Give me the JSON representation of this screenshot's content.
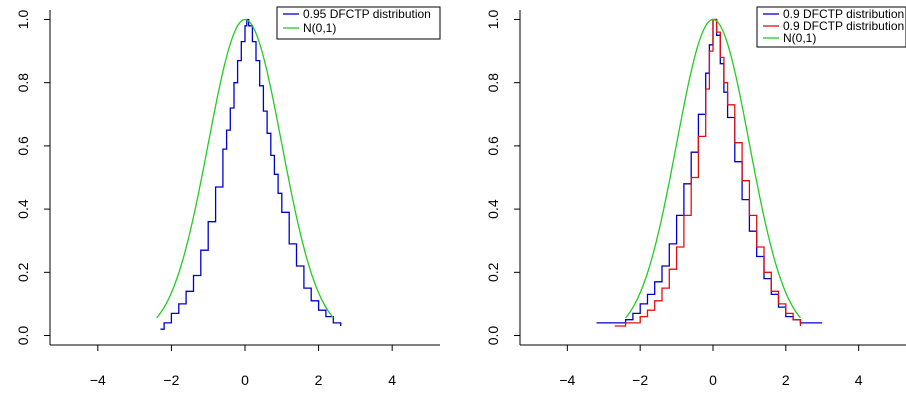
{
  "chart_data": [
    {
      "type": "line",
      "title": "",
      "xlabel": "",
      "ylabel": "",
      "xlim": [
        -5.3,
        5.3
      ],
      "ylim": [
        -0.03,
        1.03
      ],
      "xticks": [
        -4,
        -2,
        0,
        2,
        4
      ],
      "xtick_labels": [
        "−4",
        "−2",
        "0",
        "2",
        "4"
      ],
      "yticks": [
        0.0,
        0.2,
        0.4,
        0.6,
        0.8,
        1.0
      ],
      "ytick_labels": [
        "0.0",
        "0.2",
        "0.4",
        "0.6",
        "0.8",
        "1.0"
      ],
      "grid": false,
      "legend_position": "top-right",
      "colors": {
        "blue": "#0000cc",
        "red": "#e01010",
        "green": "#22cc22",
        "axis": "#000000"
      },
      "series": [
        {
          "name": "0.95 DFCTP distribution",
          "color": "#0000cc",
          "style": "step",
          "x": [
            -2.3,
            -2.2,
            -2.0,
            -1.8,
            -1.6,
            -1.4,
            -1.2,
            -1.0,
            -0.8,
            -0.6,
            -0.5,
            -0.4,
            -0.3,
            -0.2,
            -0.1,
            0.0,
            0.05,
            0.1,
            0.2,
            0.3,
            0.4,
            0.5,
            0.6,
            0.7,
            0.8,
            0.9,
            1.0,
            1.2,
            1.4,
            1.6,
            1.8,
            2.0,
            2.2,
            2.4,
            2.6
          ],
          "y": [
            0.02,
            0.04,
            0.07,
            0.1,
            0.14,
            0.19,
            0.27,
            0.36,
            0.47,
            0.59,
            0.65,
            0.72,
            0.8,
            0.87,
            0.93,
            0.98,
            1.0,
            0.98,
            0.93,
            0.87,
            0.79,
            0.71,
            0.64,
            0.57,
            0.51,
            0.45,
            0.39,
            0.29,
            0.22,
            0.15,
            0.11,
            0.08,
            0.06,
            0.04,
            0.03
          ]
        },
        {
          "name": "N(0,1)",
          "color": "#22cc22",
          "style": "smooth",
          "func": "gauss_peak1",
          "xrange": [
            -2.4,
            2.4
          ]
        }
      ]
    },
    {
      "type": "line",
      "title": "",
      "xlabel": "",
      "ylabel": "",
      "xlim": [
        -5.3,
        5.3
      ],
      "ylim": [
        -0.03,
        1.03
      ],
      "xticks": [
        -4,
        -2,
        0,
        2,
        4
      ],
      "xtick_labels": [
        "−4",
        "−2",
        "0",
        "2",
        "4"
      ],
      "yticks": [
        0.0,
        0.2,
        0.4,
        0.6,
        0.8,
        1.0
      ],
      "ytick_labels": [
        "0.0",
        "0.2",
        "0.4",
        "0.6",
        "0.8",
        "1.0"
      ],
      "grid": false,
      "legend_position": "top-right",
      "series": [
        {
          "name": "0.9 DFCTP distribution",
          "color": "#0000cc",
          "style": "step",
          "x": [
            -3.2,
            -2.4,
            -2.2,
            -2.0,
            -1.8,
            -1.6,
            -1.4,
            -1.2,
            -1.0,
            -0.8,
            -0.6,
            -0.4,
            -0.2,
            -0.1,
            0.0,
            0.1,
            0.2,
            0.3,
            0.4,
            0.6,
            0.8,
            1.0,
            1.2,
            1.4,
            1.6,
            1.8,
            2.0,
            2.2,
            2.4,
            3.0
          ],
          "y": [
            0.04,
            0.05,
            0.07,
            0.1,
            0.13,
            0.17,
            0.22,
            0.29,
            0.38,
            0.48,
            0.58,
            0.7,
            0.83,
            0.92,
            1.0,
            0.95,
            0.86,
            0.77,
            0.69,
            0.55,
            0.43,
            0.33,
            0.25,
            0.18,
            0.13,
            0.09,
            0.06,
            0.05,
            0.04,
            0.04
          ]
        },
        {
          "name": "0.9 DFCTP distribution",
          "color": "#e01010",
          "style": "step",
          "x": [
            -2.7,
            -2.4,
            -2.0,
            -1.8,
            -1.6,
            -1.4,
            -1.2,
            -1.0,
            -0.8,
            -0.6,
            -0.4,
            -0.2,
            -0.1,
            0.0,
            0.1,
            0.2,
            0.3,
            0.4,
            0.6,
            0.8,
            1.0,
            1.2,
            1.4,
            1.6,
            1.8,
            2.0,
            2.2,
            2.4
          ],
          "y": [
            0.03,
            0.04,
            0.06,
            0.08,
            0.11,
            0.15,
            0.21,
            0.28,
            0.38,
            0.5,
            0.63,
            0.78,
            0.9,
            1.0,
            0.96,
            0.88,
            0.8,
            0.73,
            0.61,
            0.49,
            0.38,
            0.28,
            0.2,
            0.14,
            0.1,
            0.07,
            0.05,
            0.03
          ]
        },
        {
          "name": "N(0,1)",
          "color": "#22cc22",
          "style": "smooth",
          "func": "gauss_peak1",
          "xrange": [
            -2.4,
            2.4
          ]
        }
      ]
    }
  ]
}
